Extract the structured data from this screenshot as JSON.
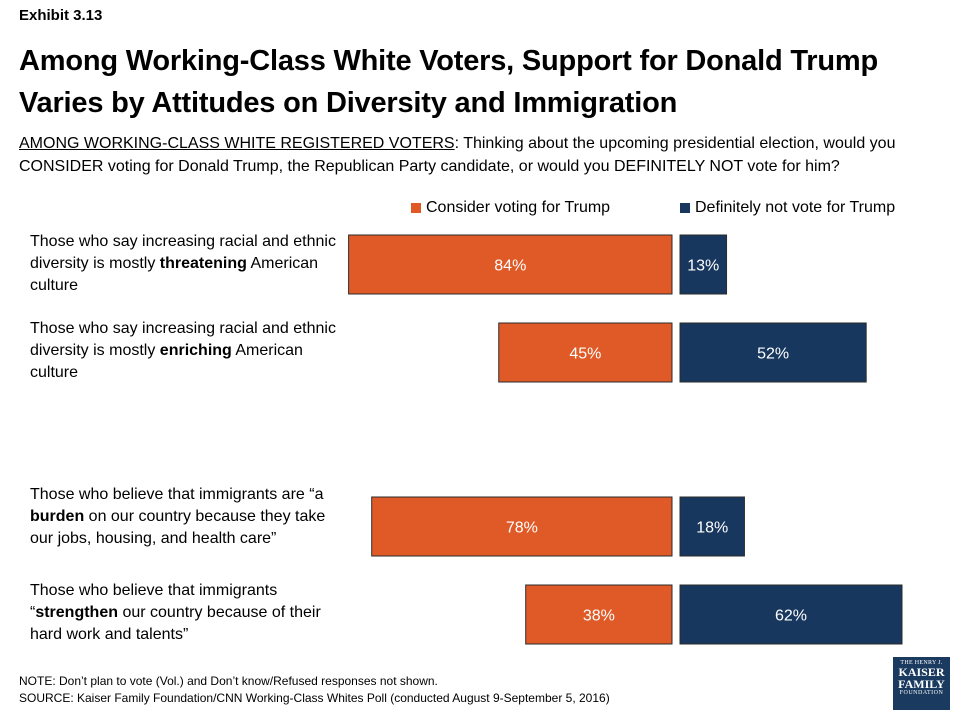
{
  "exhibit": "Exhibit 3.13",
  "title": "Among Working-Class White Voters, Support for Donald Trump Varies by Attitudes on Diversity and Immigration",
  "question": {
    "prefix": "AMONG WORKING-CLASS WHITE REGISTERED VOTERS",
    "text": ": Thinking about the upcoming presidential election, would you CONSIDER voting for Donald Trump, the Republican Party candidate, or would you DEFINITELY NOT vote for him?"
  },
  "colors": {
    "consider": "#e05a27",
    "not": "#17375e",
    "bar_text": "#ffffff"
  },
  "rows": [
    {
      "pre": "Those who say increasing racial and ethnic diversity is mostly ",
      "bold": "threatening",
      "post": " American culture"
    },
    {
      "pre": "Those who say increasing racial and ethnic diversity is mostly ",
      "bold": "enriching",
      "post": " American culture"
    },
    {
      "pre": "Those who believe that immigrants are “a ",
      "bold": "burden",
      "post": " on our country because they take our jobs, housing, and health care”"
    },
    {
      "pre": "Those who believe that immigrants “",
      "bold": "strengthen",
      "post": " our country because of their hard work and talents”"
    }
  ],
  "chart_data": {
    "type": "bar",
    "orientation": "horizontal-diverging",
    "legend": "top",
    "categories": [
      "Those who say increasing racial and ethnic diversity is mostly threatening American culture",
      "Those who say increasing racial and ethnic diversity is mostly enriching American culture",
      "Those who believe that immigrants are “a burden on our country because they take our jobs, housing, and health care”",
      "Those who believe that immigrants “strengthen our country because of their hard work and talents”"
    ],
    "series": [
      {
        "name": "Consider voting for Trump",
        "values": [
          84,
          45,
          78,
          38
        ],
        "labels": [
          "84%",
          "45%",
          "78%",
          "38%"
        ]
      },
      {
        "name": "Definitely not vote for Trump",
        "values": [
          13,
          52,
          18,
          62
        ],
        "labels": [
          "13%",
          "52%",
          "18%",
          "62%"
        ]
      }
    ]
  },
  "note": "NOTE: Don’t plan to vote (Vol.) and Don’t know/Refused responses not shown.",
  "source": "SOURCE: Kaiser Family Foundation/CNN Working-Class Whites Poll (conducted August 9-September 5, 2016)",
  "logo": {
    "line1": "THE HENRY J.",
    "line2": "KAISER",
    "line3": "FAMILY",
    "line4": "FOUNDATION"
  }
}
